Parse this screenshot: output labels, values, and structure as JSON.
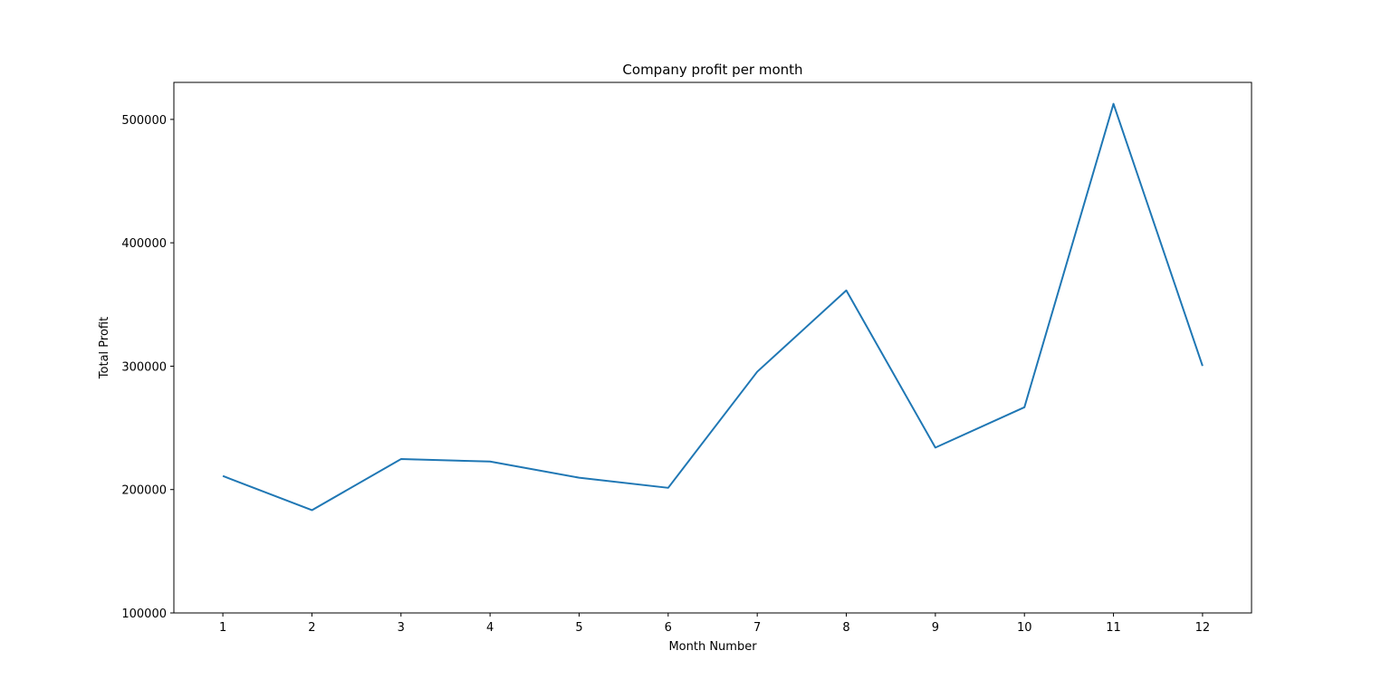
{
  "chart_data": {
    "type": "line",
    "title": "Company profit per month",
    "xlabel": "Month Number",
    "ylabel": "Total Profit",
    "x": [
      1,
      2,
      3,
      4,
      5,
      6,
      7,
      8,
      9,
      10,
      11,
      12
    ],
    "x_tick_labels": [
      "1",
      "2",
      "3",
      "4",
      "5",
      "6",
      "7",
      "8",
      "9",
      "10",
      "11",
      "12"
    ],
    "y_ticks": [
      100000,
      200000,
      300000,
      400000,
      500000
    ],
    "y_tick_labels": [
      "100000",
      "200000",
      "300000",
      "400000",
      "500000"
    ],
    "xlim": [
      0.45,
      12.55
    ],
    "ylim": [
      100000,
      530000
    ],
    "grid": false,
    "legend": "none",
    "series": [
      {
        "color": "#1f77b4",
        "values": [
          211000,
          183300,
          224700,
          222700,
          209600,
          201400,
          295500,
          361400,
          234000,
          266700,
          512600,
          300200
        ]
      }
    ]
  }
}
